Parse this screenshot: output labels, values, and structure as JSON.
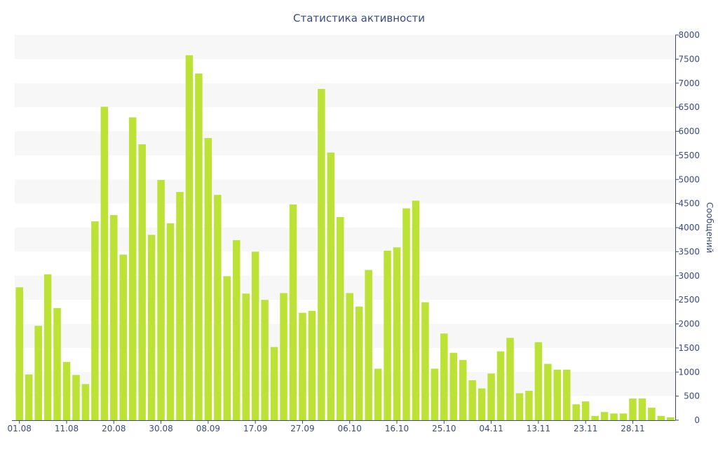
{
  "chart_data": {
    "type": "bar",
    "title": "Статистика активности",
    "ylabel": "Сообщений",
    "ylim": [
      0,
      8000
    ],
    "y_ticks": [
      0,
      500,
      1000,
      1500,
      2000,
      2500,
      3000,
      3500,
      4000,
      4500,
      5000,
      5500,
      6000,
      6500,
      7000,
      7500,
      8000
    ],
    "y_axis_side": "right",
    "grid": "alternating horizontal bands",
    "bar_color": "#bce236",
    "band_color": "#f7f7f7",
    "text_color": "#3a4a80",
    "x_tick_labels": [
      {
        "index": 0,
        "label": "01.08"
      },
      {
        "index": 5,
        "label": "11.08"
      },
      {
        "index": 10,
        "label": "20.08"
      },
      {
        "index": 15,
        "label": "30.08"
      },
      {
        "index": 20,
        "label": "08.09"
      },
      {
        "index": 25,
        "label": "17.09"
      },
      {
        "index": 30,
        "label": "27.09"
      },
      {
        "index": 35,
        "label": "06.10"
      },
      {
        "index": 40,
        "label": "16.10"
      },
      {
        "index": 45,
        "label": "25.10"
      },
      {
        "index": 50,
        "label": "04.11"
      },
      {
        "index": 55,
        "label": "13.11"
      },
      {
        "index": 60,
        "label": "23.11"
      },
      {
        "index": 65,
        "label": "28.11"
      }
    ],
    "values": [
      2760,
      950,
      1960,
      3030,
      2330,
      1210,
      940,
      750,
      4130,
      6510,
      4260,
      3440,
      6290,
      5730,
      3850,
      4990,
      4090,
      4740,
      7580,
      7200,
      5860,
      4680,
      2990,
      3740,
      2630,
      3500,
      2500,
      1520,
      2640,
      4480,
      2230,
      2270,
      6880,
      5560,
      4220,
      2640,
      2360,
      3120,
      1070,
      3520,
      3590,
      4400,
      4560,
      2450,
      1070,
      1800,
      1400,
      1250,
      830,
      660,
      970,
      1430,
      1710,
      560,
      610,
      1620,
      1170,
      1050,
      1050,
      330,
      390,
      90,
      170,
      140,
      140,
      450,
      450,
      260,
      90,
      60
    ]
  }
}
